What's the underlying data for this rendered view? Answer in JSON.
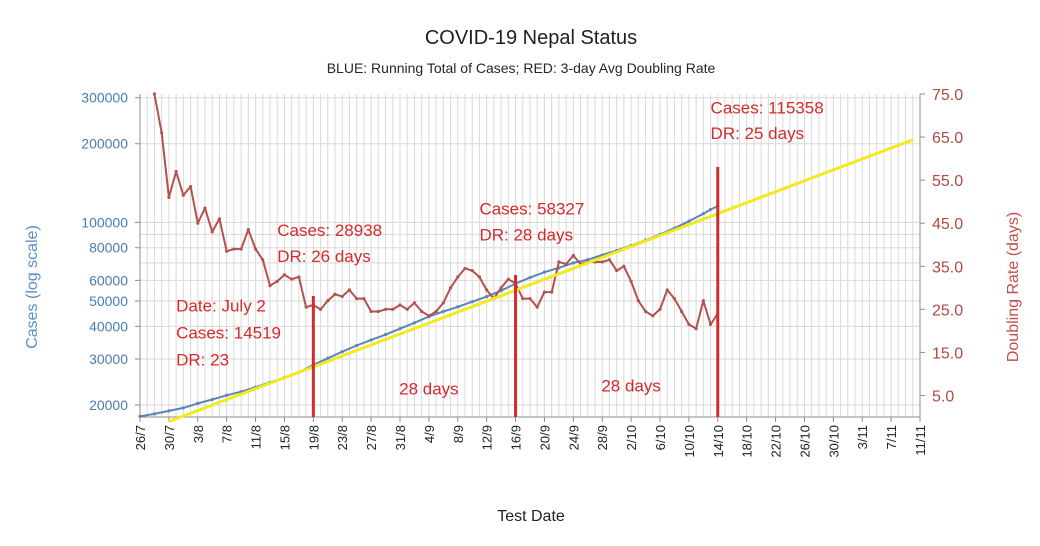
{
  "chart_data": {
    "type": "line",
    "title": "COVID-19 Nepal Status",
    "subtitle": "BLUE: Running Total of Cases; RED: 3-day Avg Doubling Rate",
    "xlabel": "Test Date",
    "ylabel_left": "Cases (log scale)",
    "ylabel_right": "Doubling Rate (days)",
    "x_ticks": [
      "26/7",
      "30/7",
      "3/8",
      "7/8",
      "11/8",
      "15/8",
      "19/8",
      "23/8",
      "27/8",
      "31/8",
      "4/9",
      "8/9",
      "12/9",
      "16/9",
      "20/9",
      "24/9",
      "28/9",
      "2/10",
      "6/10",
      "10/10",
      "14/10",
      "18/10",
      "22/10",
      "26/10",
      "30/10",
      "3/11",
      "7/11",
      "11/11"
    ],
    "y_left_ticks": [
      "20000",
      "30000",
      "40000",
      "50000",
      "60000",
      "80000",
      "100000",
      "200000",
      "300000"
    ],
    "y_left_scale": "log",
    "y_left_range": [
      18000,
      310000
    ],
    "y_right_ticks": [
      "5.0",
      "15.0",
      "25.0",
      "35.0",
      "45.0",
      "55.0",
      "65.0",
      "75.0"
    ],
    "y_right_range": [
      0,
      75
    ],
    "grid": true,
    "colors": {
      "cases": "#5a86b8",
      "doubling": "#b5514d",
      "trend": "#f2ea1f",
      "marker": "#d42a2a"
    },
    "x_range": [
      "2020-07-26",
      "2020-11-11"
    ],
    "series": [
      {
        "axis": "left",
        "color": "#5a86b8",
        "points": [
          [
            "2020-07-26",
            18100
          ],
          [
            "2020-07-28",
            18500
          ],
          [
            "2020-07-30",
            19000
          ],
          [
            "2020-08-01",
            19500
          ],
          [
            "2020-08-03",
            20300
          ],
          [
            "2020-08-05",
            21000
          ],
          [
            "2020-08-07",
            21800
          ],
          [
            "2020-08-09",
            22500
          ],
          [
            "2020-08-11",
            23400
          ],
          [
            "2020-08-13",
            24400
          ],
          [
            "2020-08-15",
            25500
          ],
          [
            "2020-08-17",
            26700
          ],
          [
            "2020-08-19",
            28500
          ],
          [
            "2020-08-21",
            30200
          ],
          [
            "2020-08-23",
            32000
          ],
          [
            "2020-08-25",
            33800
          ],
          [
            "2020-08-27",
            35500
          ],
          [
            "2020-08-29",
            37200
          ],
          [
            "2020-08-31",
            39200
          ],
          [
            "2020-09-02",
            41300
          ],
          [
            "2020-09-04",
            43600
          ],
          [
            "2020-09-06",
            45600
          ],
          [
            "2020-09-08",
            47500
          ],
          [
            "2020-09-10",
            49700
          ],
          [
            "2020-09-12",
            52000
          ],
          [
            "2020-09-14",
            54800
          ],
          [
            "2020-09-16",
            58300
          ],
          [
            "2020-09-18",
            61500
          ],
          [
            "2020-09-20",
            64500
          ],
          [
            "2020-09-22",
            67000
          ],
          [
            "2020-09-24",
            70000
          ],
          [
            "2020-09-26",
            72000
          ],
          [
            "2020-09-28",
            75000
          ],
          [
            "2020-09-30",
            78000
          ],
          [
            "2020-10-02",
            81500
          ],
          [
            "2020-10-04",
            85500
          ],
          [
            "2020-10-06",
            90000
          ],
          [
            "2020-10-08",
            95000
          ],
          [
            "2020-10-10",
            101000
          ],
          [
            "2020-10-12",
            108000
          ],
          [
            "2020-10-13",
            112000
          ],
          [
            "2020-10-14",
            115400
          ]
        ]
      },
      {
        "axis": "right",
        "color": "#b5514d",
        "points": [
          [
            "2020-07-28",
            75.0
          ],
          [
            "2020-07-29",
            66.0
          ],
          [
            "2020-07-30",
            51.0
          ],
          [
            "2020-07-31",
            57.0
          ],
          [
            "2020-08-01",
            51.5
          ],
          [
            "2020-08-02",
            53.5
          ],
          [
            "2020-08-03",
            45.0
          ],
          [
            "2020-08-04",
            48.5
          ],
          [
            "2020-08-05",
            43.0
          ],
          [
            "2020-08-06",
            46.0
          ],
          [
            "2020-08-07",
            38.5
          ],
          [
            "2020-08-08",
            39.0
          ],
          [
            "2020-08-09",
            39.0
          ],
          [
            "2020-08-10",
            43.5
          ],
          [
            "2020-08-11",
            39.0
          ],
          [
            "2020-08-12",
            36.5
          ],
          [
            "2020-08-13",
            30.5
          ],
          [
            "2020-08-14",
            31.5
          ],
          [
            "2020-08-15",
            33.0
          ],
          [
            "2020-08-16",
            32.0
          ],
          [
            "2020-08-17",
            32.5
          ],
          [
            "2020-08-18",
            25.5
          ],
          [
            "2020-08-19",
            26.0
          ],
          [
            "2020-08-20",
            25.0
          ],
          [
            "2020-08-21",
            27.0
          ],
          [
            "2020-08-22",
            28.5
          ],
          [
            "2020-08-23",
            28.0
          ],
          [
            "2020-08-24",
            29.5
          ],
          [
            "2020-08-25",
            27.5
          ],
          [
            "2020-08-26",
            27.5
          ],
          [
            "2020-08-27",
            24.5
          ],
          [
            "2020-08-28",
            24.5
          ],
          [
            "2020-08-29",
            25.0
          ],
          [
            "2020-08-30",
            25.0
          ],
          [
            "2020-08-31",
            26.0
          ],
          [
            "2020-09-01",
            25.0
          ],
          [
            "2020-09-02",
            26.5
          ],
          [
            "2020-09-03",
            24.5
          ],
          [
            "2020-09-04",
            23.5
          ],
          [
            "2020-09-05",
            24.5
          ],
          [
            "2020-09-06",
            26.5
          ],
          [
            "2020-09-07",
            30.0
          ],
          [
            "2020-09-08",
            32.5
          ],
          [
            "2020-09-09",
            34.5
          ],
          [
            "2020-09-10",
            34.0
          ],
          [
            "2020-09-11",
            32.5
          ],
          [
            "2020-09-12",
            29.5
          ],
          [
            "2020-09-13",
            27.5
          ],
          [
            "2020-09-14",
            30.0
          ],
          [
            "2020-09-15",
            32.0
          ],
          [
            "2020-09-16",
            31.0
          ],
          [
            "2020-09-17",
            27.5
          ],
          [
            "2020-09-18",
            27.5
          ],
          [
            "2020-09-19",
            25.5
          ],
          [
            "2020-09-20",
            29.0
          ],
          [
            "2020-09-21",
            29.0
          ],
          [
            "2020-09-22",
            36.0
          ],
          [
            "2020-09-23",
            35.5
          ],
          [
            "2020-09-24",
            37.5
          ],
          [
            "2020-09-25",
            35.5
          ],
          [
            "2020-09-26",
            36.0
          ],
          [
            "2020-09-27",
            36.0
          ],
          [
            "2020-09-28",
            36.0
          ],
          [
            "2020-09-29",
            36.5
          ],
          [
            "2020-09-30",
            34.0
          ],
          [
            "2020-10-01",
            35.0
          ],
          [
            "2020-10-02",
            31.5
          ],
          [
            "2020-10-03",
            27.0
          ],
          [
            "2020-10-04",
            24.5
          ],
          [
            "2020-10-05",
            23.5
          ],
          [
            "2020-10-06",
            25.0
          ],
          [
            "2020-10-07",
            29.5
          ],
          [
            "2020-10-08",
            27.5
          ],
          [
            "2020-10-09",
            24.5
          ],
          [
            "2020-10-10",
            21.5
          ],
          [
            "2020-10-11",
            20.5
          ],
          [
            "2020-10-12",
            27.0
          ],
          [
            "2020-10-13",
            21.5
          ],
          [
            "2020-10-14",
            24.0
          ]
        ]
      },
      {
        "axis": "left",
        "color": "#f2ea1f",
        "points": [
          [
            "2020-07-30",
            17300
          ],
          [
            "2020-11-10",
            207000
          ]
        ]
      }
    ],
    "marker_dates": [
      "2020-08-19",
      "2020-09-16",
      "2020-10-14"
    ],
    "annotations": [
      {
        "text": "Date: July 2",
        "x": "2020-07-31",
        "y": 24.5
      },
      {
        "text": "Cases: 14519",
        "x": "2020-07-31",
        "y": 18.2
      },
      {
        "text": "DR: 23",
        "x": "2020-07-31",
        "y": 12.0
      },
      {
        "text": "Cases: 28938",
        "x": "2020-08-14",
        "y": 42.0
      },
      {
        "text": "DR: 26 days",
        "x": "2020-08-14",
        "y": 36.0
      },
      {
        "text": "Cases: 58327",
        "x": "2020-09-11",
        "y": 47.0
      },
      {
        "text": "DR: 28 days",
        "x": "2020-09-11",
        "y": 41.0
      },
      {
        "text": "Cases: 115358",
        "x": "2020-10-13",
        "y": 70.5
      },
      {
        "text": "DR: 25 days",
        "x": "2020-10-13",
        "y": 64.5
      },
      {
        "text": "28 days",
        "x": "2020-09-04",
        "y": 5.2,
        "anchor": "middle"
      },
      {
        "text": "28 days",
        "x": "2020-10-02",
        "y": 5.9,
        "anchor": "middle"
      }
    ]
  }
}
